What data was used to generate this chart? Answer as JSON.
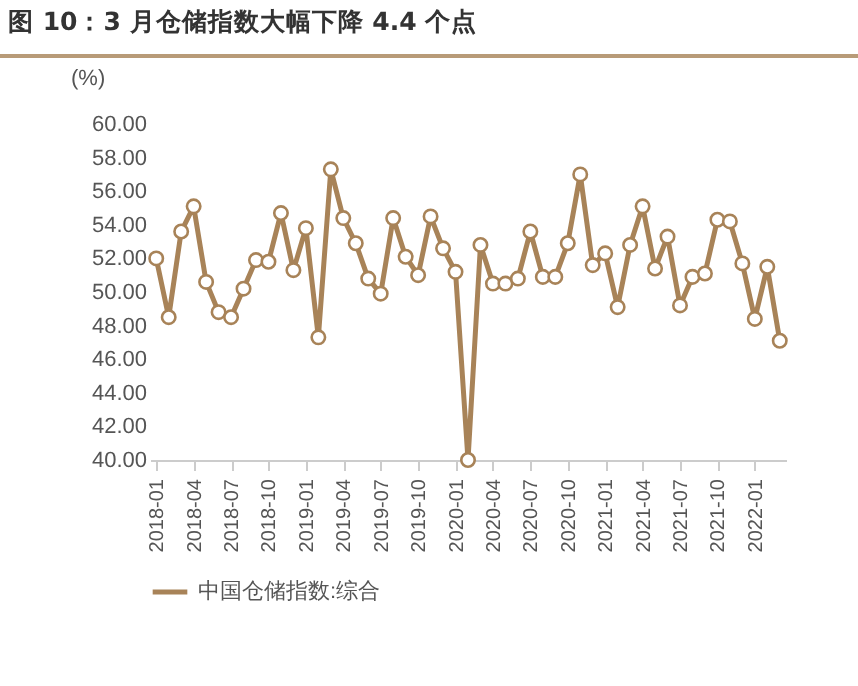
{
  "chart_data": {
    "type": "line",
    "title": "图 10：3 月仓储指数大幅下降 4.4 个点",
    "ylabel": "(%)",
    "categories": [
      "2018-01",
      null,
      null,
      "2018-04",
      null,
      null,
      "2018-07",
      null,
      null,
      "2018-10",
      null,
      null,
      "2019-01",
      null,
      null,
      "2019-04",
      null,
      null,
      "2019-07",
      null,
      null,
      "2019-10",
      null,
      null,
      "2020-01",
      null,
      null,
      "2020-04",
      null,
      null,
      "2020-07",
      null,
      null,
      "2020-10",
      null,
      null,
      "2021-01",
      null,
      null,
      "2021-04",
      null,
      null,
      "2021-07",
      null,
      null,
      "2021-10",
      null,
      null,
      "2022-01",
      null,
      null
    ],
    "series": [
      {
        "name": "中国仓储指数:综合",
        "color": "#a88358",
        "values": [
          52.0,
          48.5,
          53.6,
          55.1,
          50.6,
          48.8,
          48.5,
          50.2,
          51.9,
          51.8,
          54.7,
          51.3,
          53.8,
          47.3,
          57.3,
          54.4,
          52.9,
          50.8,
          49.9,
          54.4,
          52.1,
          51.0,
          54.5,
          52.6,
          51.2,
          40.0,
          52.8,
          50.5,
          50.5,
          50.8,
          53.6,
          50.9,
          50.9,
          52.9,
          57.0,
          51.6,
          52.3,
          49.1,
          52.8,
          55.1,
          51.4,
          53.3,
          49.2,
          50.9,
          51.1,
          54.3,
          54.2,
          51.7,
          48.4,
          51.5,
          47.1
        ]
      }
    ],
    "ylim": [
      40,
      60
    ],
    "yticks": [
      {
        "value": 40,
        "label": "40.00"
      },
      {
        "value": 42,
        "label": "42.00"
      },
      {
        "value": 44,
        "label": "44.00"
      },
      {
        "value": 46,
        "label": "46.00"
      },
      {
        "value": 48,
        "label": "48.00"
      },
      {
        "value": 50,
        "label": "50.00"
      },
      {
        "value": 52,
        "label": "52.00"
      },
      {
        "value": 54,
        "label": "54.00"
      },
      {
        "value": 56,
        "label": "56.00"
      },
      {
        "value": 58,
        "label": "58.00"
      },
      {
        "value": 60,
        "label": "60.00"
      }
    ],
    "grid": false,
    "legend": "bottom",
    "marker": "circle",
    "line_style": "solid"
  }
}
